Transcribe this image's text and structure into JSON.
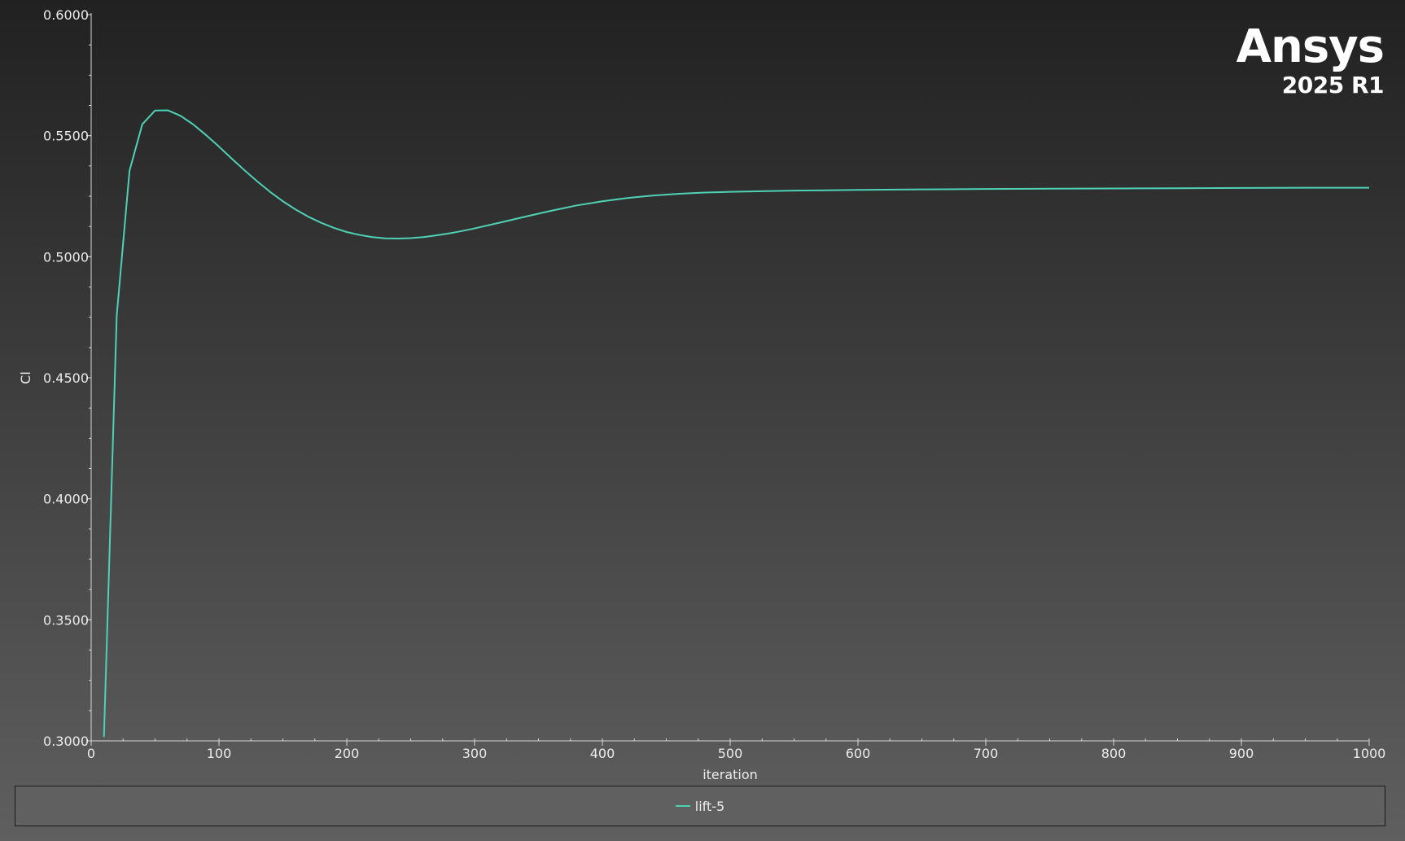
{
  "logo": {
    "word": "Ansys",
    "version": "2025 R1"
  },
  "chart_data": {
    "type": "line",
    "xlabel": "iteration",
    "ylabel": "Cl",
    "xlim": [
      0,
      1000
    ],
    "ylim": [
      0.3,
      0.6
    ],
    "x_ticks": [
      "0",
      "100",
      "200",
      "300",
      "400",
      "500",
      "600",
      "700",
      "800",
      "900",
      "1000"
    ],
    "y_ticks": [
      "0.3000",
      "0.3500",
      "0.4000",
      "0.4500",
      "0.5000",
      "0.5500",
      "0.6000"
    ],
    "grid": false,
    "legend_position": "bottom",
    "series": [
      {
        "name": "lift-5",
        "color": "#4fd1b5",
        "x": [
          10,
          20,
          30,
          40,
          50,
          60,
          70,
          80,
          90,
          100,
          110,
          120,
          130,
          140,
          150,
          160,
          170,
          180,
          190,
          200,
          210,
          220,
          230,
          240,
          250,
          260,
          270,
          280,
          290,
          300,
          320,
          340,
          360,
          380,
          400,
          420,
          440,
          460,
          480,
          500,
          550,
          600,
          650,
          700,
          750,
          800,
          850,
          900,
          950,
          1000
        ],
        "y": [
          0.3016,
          0.4757,
          0.5355,
          0.5547,
          0.5604,
          0.5605,
          0.5582,
          0.5546,
          0.5502,
          0.5455,
          0.5405,
          0.5357,
          0.5311,
          0.5268,
          0.5229,
          0.5195,
          0.5165,
          0.514,
          0.5119,
          0.5102,
          0.509,
          0.5081,
          0.5076,
          0.5075,
          0.5077,
          0.5081,
          0.5088,
          0.5096,
          0.5106,
          0.5117,
          0.5141,
          0.5166,
          0.519,
          0.5212,
          0.5229,
          0.5243,
          0.5253,
          0.526,
          0.5265,
          0.5268,
          0.5273,
          0.5276,
          0.5278,
          0.528,
          0.5281,
          0.5282,
          0.5283,
          0.5284,
          0.5285,
          0.5285
        ]
      }
    ]
  }
}
